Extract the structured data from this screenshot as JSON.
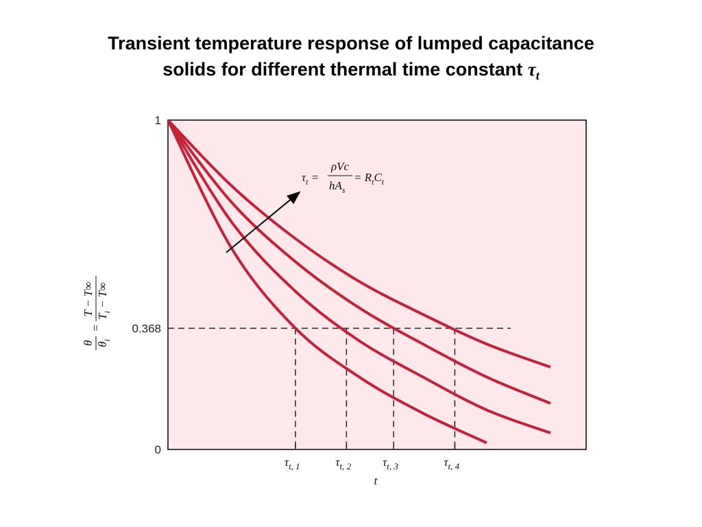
{
  "chart_data": {
    "type": "line",
    "title": [
      "Transient temperature response of lumped capacitance",
      "solids for different thermal time constant "
    ],
    "title_symbol": "τ",
    "title_symbol_sub": "t",
    "xlabel": "t",
    "ylabel": {
      "left_num": "θ",
      "left_den": "θ",
      "left_den_sub": "i",
      "equals": "=",
      "right_num": "T − T∞",
      "right_den": "T",
      "right_den_sub": "i",
      "right_den_rest": " − T∞"
    },
    "annotation": {
      "lhs": "τ",
      "lhs_sub": "t",
      "eq1": " = ",
      "num": "ρVc",
      "den": "hA",
      "den_sub": "s",
      "eq2": " = R",
      "r_sub": "t",
      "c": "C",
      "c_sub": "t"
    },
    "x": [
      0,
      0.5,
      1,
      1.5,
      2,
      2.5,
      3
    ],
    "series": [
      {
        "color": "#c42239",
        "values": [
          1,
          0.61,
          0.368,
          0.22,
          0.11,
          0.02,
          null
        ]
      },
      {
        "color": "#c42239",
        "values": [
          1,
          0.69,
          0.48,
          0.33,
          0.22,
          0.12,
          0.05
        ]
      },
      {
        "color": "#c42239",
        "values": [
          1,
          0.75,
          0.57,
          0.43,
          0.32,
          0.22,
          0.14
        ]
      },
      {
        "color": "#c42239",
        "values": [
          1,
          0.8,
          0.64,
          0.51,
          0.41,
          0.32,
          0.25
        ]
      }
    ],
    "xlim": [
      0,
      3.28
    ],
    "xticks": [
      {
        "value": 1,
        "label": "τ",
        "sub": "t, 1"
      },
      {
        "value": 1.4,
        "label": "τ",
        "sub": "t, 2"
      },
      {
        "value": 1.77,
        "label": "τ",
        "sub": "t, 3"
      },
      {
        "value": 2.25,
        "label": "τ",
        "sub": "t, 4"
      }
    ],
    "ylim": [
      0,
      1
    ],
    "yticks": [
      0,
      0.368,
      1
    ],
    "plot_background": "#fde8ec"
  }
}
